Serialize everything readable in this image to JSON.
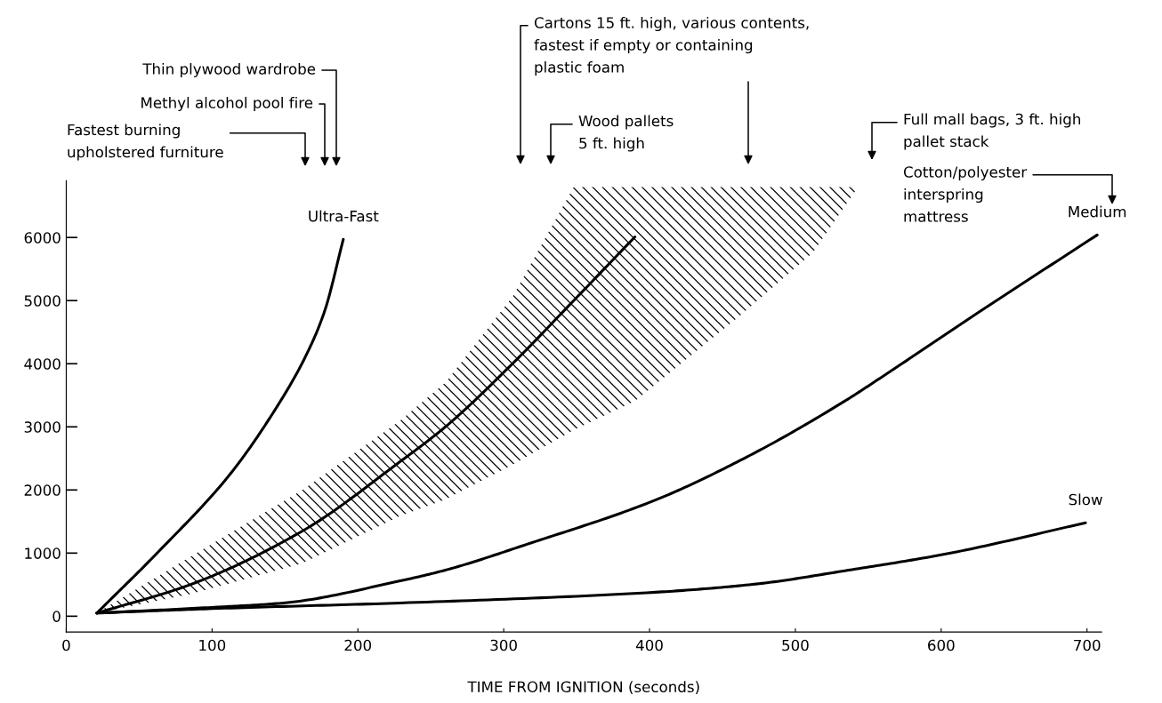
{
  "chart_data": {
    "type": "line",
    "xlabel": "TIME FROM IGNITION (seconds)",
    "xlim": [
      0,
      710
    ],
    "ylim": [
      -250,
      6900
    ],
    "xticks": [
      0,
      100,
      200,
      300,
      400,
      500,
      600,
      700
    ],
    "yticks": [
      0,
      1000,
      2000,
      3000,
      4000,
      5000,
      6000
    ],
    "series": [
      {
        "name": "Ultra-Fast",
        "color": "#000000",
        "x": [
          21,
          64,
          112,
          144,
          164,
          177,
          190
        ],
        "values": [
          50,
          1040,
          2240,
          3300,
          4110,
          4820,
          5970
        ]
      },
      {
        "color": "#000000",
        "x": [
          21,
          85,
          162,
          229,
          260,
          306,
          348,
          390,
          462,
          512,
          543
        ],
        "values": [
          50,
          500,
          1350,
          2450,
          3000,
          4000,
          5000,
          6010,
          null,
          null,
          null
        ],
        "lower": [
          50,
          350,
          840,
          1590,
          1850,
          2400,
          2950,
          3410,
          4760,
          5760,
          6800
        ],
        "upper": [
          50,
          940,
          2000,
          3100,
          3700,
          5060,
          6800,
          6800,
          6800,
          6800,
          6800
        ]
      },
      {
        "name": "Medium",
        "color": "#000000",
        "x": [
          21,
          100,
          149,
          229,
          260,
          316,
          404,
          469,
          534,
          560,
          626,
          707
        ],
        "values": [
          50,
          140,
          210,
          560,
          730,
          1140,
          1840,
          2550,
          3410,
          3800,
          4820,
          6040
        ]
      },
      {
        "name": "Slow",
        "color": "#000000",
        "x": [
          21,
          100,
          229,
          404,
          473,
          534,
          604,
          699
        ],
        "values": [
          50,
          120,
          210,
          380,
          510,
          720,
          990,
          1480
        ]
      }
    ],
    "annotations": [
      "Thin plywood wardrobe",
      "Methyl alcohol pool fire",
      "Fastest burning\nupholstered furniture",
      "Cartons 15 ft. high, various contents,\nfastest if empty or containing\nplastic foam",
      "Wood pallets\n5 ft. high",
      "Full mall bags, 3 ft. high\npallet stack",
      "Cotton/polyester\ninterspring\nmattress"
    ]
  }
}
